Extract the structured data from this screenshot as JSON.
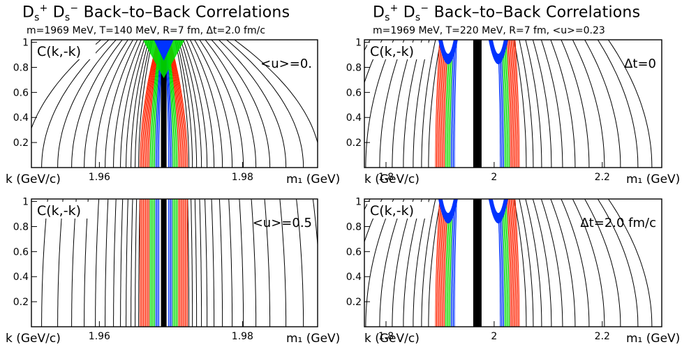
{
  "chart_data": [
    {
      "type": "contour",
      "title": "D_s^+ D_s^- Back-to-Back Correlations",
      "subtitle": "m=1969 MeV, T=140 MeV, R=7 fm, Δt=2.0 fm/c",
      "inner_label": "C(k,-k)",
      "annotation": "<u>=0.",
      "xlabel": "m₁ (GeV)",
      "ylabel": "k (GeV/c)",
      "xlim": [
        1.9505,
        1.9905
      ],
      "ylim": [
        0,
        1.02
      ],
      "xticks": [
        1.96,
        1.98
      ],
      "xticklabels": [
        "1.96",
        "1.98"
      ],
      "yticks": [
        0.2,
        0.4,
        0.6,
        0.8,
        1
      ],
      "peak_m": 1.969,
      "u": 0.0
    },
    {
      "type": "contour",
      "title": "D_s^+ D_s^- Back-to-Back Correlations",
      "subtitle": "m=1969 MeV, T=220 MeV, R=7 fm, <u>=0.23",
      "inner_label": "C(k,-k)",
      "annotation": "Δt=0",
      "xlabel": "m₁ (GeV)",
      "ylabel": "k (GeV/c)",
      "xlim": [
        1.76,
        2.31
      ],
      "ylim": [
        0,
        1.02
      ],
      "xticks": [
        1.8,
        2.0,
        2.2
      ],
      "xticklabels": [
        "1.8",
        "2",
        "2.2"
      ],
      "yticks": [
        0.2,
        0.4,
        0.6,
        0.8,
        1
      ],
      "peak_m": 1.969,
      "u": 0.23
    },
    {
      "type": "contour",
      "inner_label": "C(k,-k)",
      "annotation": "<u>=0.5",
      "xlabel": "m₁ (GeV)",
      "ylabel": "k (GeV/c)",
      "xlim": [
        1.9505,
        1.9905
      ],
      "ylim": [
        0,
        1.02
      ],
      "xticks": [
        1.96,
        1.98
      ],
      "xticklabels": [
        "1.96",
        "1.98"
      ],
      "yticks": [
        0.2,
        0.4,
        0.6,
        0.8,
        1
      ],
      "peak_m": 1.969,
      "u": 0.5
    },
    {
      "type": "contour",
      "inner_label": "C(k,-k)",
      "annotation": "Δt=2.0 fm/c",
      "xlabel": "m₁ (GeV)",
      "ylabel": "k (GeV/c)",
      "xlim": [
        1.76,
        2.31
      ],
      "ylim": [
        0,
        1.02
      ],
      "xticks": [
        1.8,
        2.0,
        2.2
      ],
      "xticklabels": [
        "1.8",
        "2",
        "2.2"
      ],
      "yticks": [
        0.2,
        0.4,
        0.6,
        0.8,
        1
      ],
      "peak_m": 1.969,
      "u": 0.23
    }
  ],
  "contour_colors": [
    "#000000",
    "#ff2200",
    "#00dd00",
    "#0033ff",
    "#ffcc00"
  ]
}
